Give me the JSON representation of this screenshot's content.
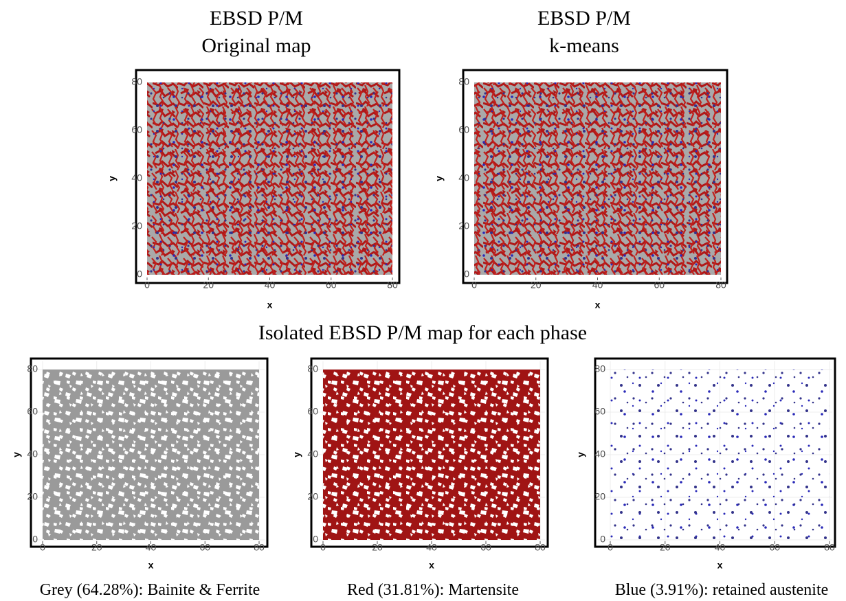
{
  "titles": [
    {
      "lines": [
        "EBSD P/M",
        "Original map"
      ]
    },
    {
      "lines": [
        "EBSD P/M",
        "k-means"
      ]
    }
  ],
  "section_title": "Isolated EBSD P/M map for each phase",
  "panels": [
    {
      "xlabel": "x",
      "ylabel": "y",
      "xlim": [
        0,
        80
      ],
      "ylim": [
        0,
        80
      ],
      "xticks": [
        0,
        20,
        40,
        60,
        80
      ],
      "yticks": [
        0,
        20,
        40,
        60,
        80
      ]
    },
    {
      "xlabel": "x",
      "ylabel": "y",
      "xlim": [
        0,
        80
      ],
      "ylim": [
        0,
        80
      ],
      "xticks": [
        0,
        20,
        40,
        60,
        80
      ],
      "yticks": [
        0,
        20,
        40,
        60,
        80
      ]
    },
    {
      "xlabel": "x",
      "ylabel": "y",
      "xlim": [
        0,
        80
      ],
      "ylim": [
        0,
        80
      ],
      "xticks": [
        0,
        20,
        40,
        60,
        80
      ],
      "yticks": [
        0,
        20,
        40,
        60,
        80
      ]
    },
    {
      "xlabel": "x",
      "ylabel": "y",
      "xlim": [
        0,
        80
      ],
      "ylim": [
        0,
        80
      ],
      "xticks": [
        0,
        20,
        40,
        60,
        80
      ],
      "yticks": [
        0,
        20,
        40,
        60,
        80
      ]
    },
    {
      "xlabel": "x",
      "ylabel": "y",
      "xlim": [
        0,
        80
      ],
      "ylim": [
        0,
        80
      ],
      "xticks": [
        0,
        20,
        40,
        60,
        80
      ],
      "yticks": [
        0,
        20,
        40,
        60,
        80
      ]
    }
  ],
  "captions": [
    "Grey (64.28%): Bainite & Ferrite",
    "Red (31.81%): Martensite",
    "Blue (3.91%): retained austenite"
  ]
}
